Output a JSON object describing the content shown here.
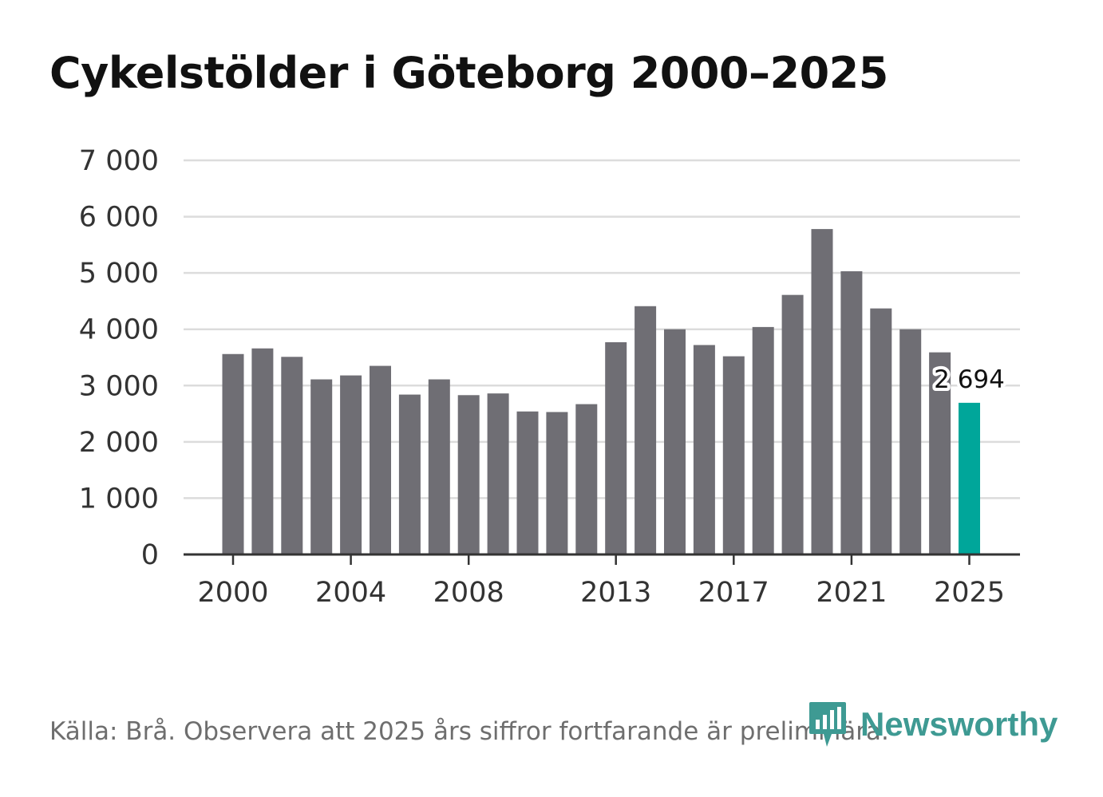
{
  "colors": {
    "bar": "#6f6e74",
    "highlight": "#00a69a",
    "grid": "#dcdcdc",
    "axis": "#333333",
    "brand": "#3e9a93"
  },
  "footer": {
    "source": "Källa: Brå. Observera att 2025 års siffror fortfarande är preliminära.",
    "brand": "Newsworthy"
  },
  "chart_data": {
    "type": "bar",
    "title": "Cykelstölder i Göteborg 2000–2025",
    "xlabel": "",
    "ylabel": "",
    "ylim": [
      0,
      7000
    ],
    "yticks": [
      0,
      1000,
      2000,
      3000,
      4000,
      5000,
      6000,
      7000
    ],
    "ytick_labels": [
      "0",
      "1 000",
      "2 000",
      "3 000",
      "4 000",
      "5 000",
      "6 000",
      "7 000"
    ],
    "xticks": [
      "2000",
      "2004",
      "2008",
      "2013",
      "2017",
      "2021",
      "2025"
    ],
    "grid": true,
    "categories": [
      "2000",
      "2001",
      "2002",
      "2003",
      "2004",
      "2005",
      "2006",
      "2007",
      "2008",
      "2009",
      "2010",
      "2011",
      "2012",
      "2013",
      "2014",
      "2015",
      "2016",
      "2017",
      "2018",
      "2019",
      "2020",
      "2021",
      "2022",
      "2023",
      "2024",
      "2025"
    ],
    "values": [
      3560,
      3660,
      3510,
      3110,
      3180,
      3350,
      2840,
      3110,
      2830,
      2860,
      2540,
      2530,
      2670,
      3770,
      4410,
      4000,
      3720,
      3520,
      4040,
      4610,
      5780,
      5030,
      4370,
      4000,
      3590,
      2694
    ],
    "highlight_index": 25,
    "annotations": [
      {
        "category": "2025",
        "text": "2 694"
      }
    ]
  }
}
